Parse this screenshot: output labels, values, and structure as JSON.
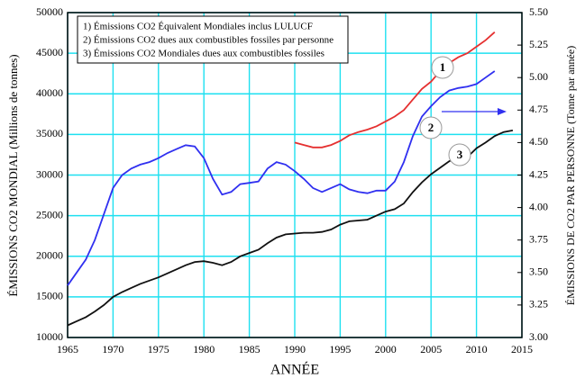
{
  "chart_data": {
    "type": "line",
    "x": [
      1965,
      1966,
      1967,
      1968,
      1969,
      1970,
      1971,
      1972,
      1973,
      1974,
      1975,
      1976,
      1977,
      1978,
      1979,
      1980,
      1981,
      1982,
      1983,
      1984,
      1985,
      1986,
      1987,
      1988,
      1989,
      1990,
      1991,
      1992,
      1993,
      1994,
      1995,
      1996,
      1997,
      1998,
      1999,
      2000,
      2001,
      2002,
      2003,
      2004,
      2005,
      2006,
      2007,
      2008,
      2009,
      2010,
      2011,
      2012,
      2013,
      2014
    ],
    "series": [
      {
        "name": "1)  Émissions  CO2  Équivalent Mondiales inclus LULUCF",
        "color": "#e53030",
        "values": [
          null,
          null,
          null,
          null,
          null,
          null,
          null,
          null,
          null,
          null,
          null,
          null,
          null,
          null,
          null,
          null,
          null,
          null,
          null,
          null,
          null,
          null,
          null,
          null,
          null,
          34000,
          33700,
          33400,
          33400,
          33700,
          34200,
          34900,
          35300,
          35600,
          36000,
          36600,
          37200,
          38000,
          39300,
          40600,
          41500,
          42800,
          43800,
          44500,
          45000,
          45800,
          46600,
          47600,
          null,
          null
        ]
      },
      {
        "name": "2)  Émissions  CO2  dues aux combustibles fossiles par personne",
        "color": "#3030f0",
        "axis": "y2",
        "values": [
          3.4,
          3.5,
          3.6,
          3.75,
          3.95,
          4.15,
          4.25,
          4.3,
          4.33,
          4.35,
          4.38,
          4.42,
          4.45,
          4.48,
          4.47,
          4.38,
          4.22,
          4.1,
          4.12,
          4.18,
          4.19,
          4.2,
          4.3,
          4.35,
          4.33,
          4.28,
          4.22,
          4.15,
          4.12,
          4.15,
          4.18,
          4.14,
          4.12,
          4.11,
          4.13,
          4.13,
          4.2,
          4.35,
          4.55,
          4.7,
          4.78,
          4.85,
          4.9,
          4.92,
          4.93,
          4.95,
          5.0,
          5.05,
          null,
          null
        ]
      },
      {
        "name": "3)  Émissions  CO2  Mondiales dues aux combustibles fossiles",
        "color": "#111111",
        "values": [
          11500,
          12000,
          12500,
          13200,
          14000,
          15000,
          15600,
          16100,
          16600,
          17000,
          17400,
          17900,
          18400,
          18900,
          19300,
          19400,
          19200,
          18900,
          19300,
          20000,
          20400,
          20800,
          21600,
          22300,
          22700,
          22800,
          22900,
          22900,
          23000,
          23300,
          23900,
          24300,
          24400,
          24500,
          25000,
          25500,
          25800,
          26500,
          27900,
          29100,
          30100,
          30900,
          31700,
          32300,
          32200,
          33300,
          34000,
          34800,
          35300,
          35500
        ]
      }
    ],
    "xlim": [
      1965,
      2015
    ],
    "xticks": [
      1965,
      1970,
      1975,
      1980,
      1985,
      1990,
      1995,
      2000,
      2005,
      2010,
      2015
    ],
    "ylim": [
      10000,
      50000
    ],
    "yticks": [
      10000,
      15000,
      20000,
      25000,
      30000,
      35000,
      40000,
      45000,
      50000
    ],
    "y2lim": [
      3,
      5.5
    ],
    "y2ticks": [
      {
        "value": 3,
        "label": "3.00"
      },
      3.25,
      {
        "value": 3.5,
        "label": "3.50"
      },
      3.75,
      {
        "value": 4,
        "label": "4.00"
      },
      4.25,
      {
        "value": 4.5,
        "label": "4.50"
      },
      4.75,
      {
        "value": 5,
        "label": "5.00"
      },
      5.25,
      {
        "value": 5.5,
        "label": "5.50"
      }
    ],
    "xlabel": "ANNÉE",
    "ylabel": "ÉMISSIONS  CO2 MONDIAL  (Millions de tonnes)",
    "y2label": "ÉMISSIONS DE CO2 PAR PERSONNE  (Tonne par année)",
    "annotations": [
      "1",
      "2",
      "3"
    ],
    "grid": true
  }
}
